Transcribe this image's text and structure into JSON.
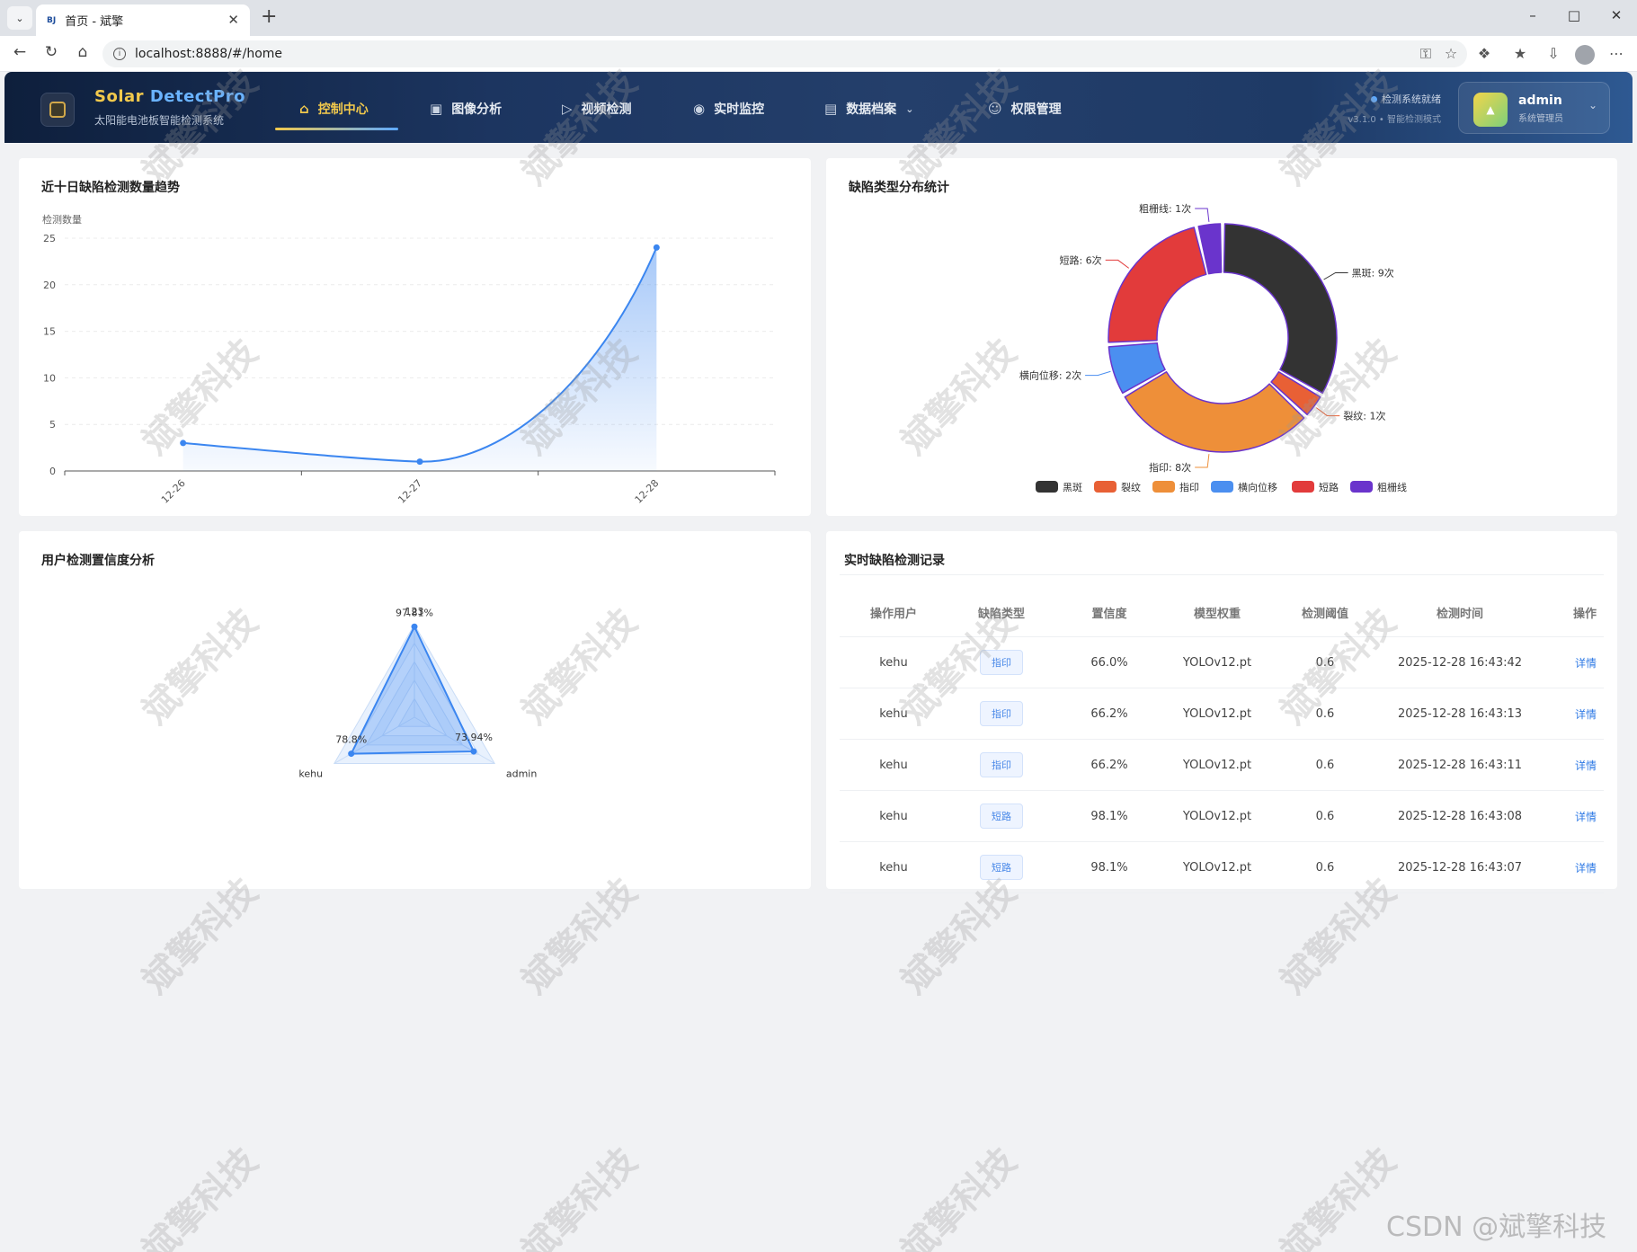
{
  "browser": {
    "tab_title": "首页 - 斌擎",
    "tab_favicon": "BJ",
    "url": "localhost:8888/#/home"
  },
  "header": {
    "brand_a": "Solar",
    "brand_b": "DetectPro",
    "subtitle": "太阳能电池板智能检测系统",
    "nav": [
      {
        "label": "控制中心",
        "icon": "home-icon",
        "active": true
      },
      {
        "label": "图像分析",
        "icon": "image-icon",
        "active": false
      },
      {
        "label": "视频检测",
        "icon": "play-circle-icon",
        "active": false
      },
      {
        "label": "实时监控",
        "icon": "camera-icon",
        "active": false
      },
      {
        "label": "数据档案",
        "icon": "document-icon",
        "active": false,
        "has_dropdown": true
      },
      {
        "label": "权限管理",
        "icon": "user-icon",
        "active": false
      }
    ],
    "status": "检测系统就绪",
    "version": "v3.1.0 • 智能检测模式",
    "user_name": "admin",
    "user_role": "系统管理员",
    "accent": "#f2c94c"
  },
  "trend": {
    "title": "近十日缺陷检测数量趋势",
    "chart_data": {
      "type": "line",
      "ylabel": "检测数量",
      "xlabel": "",
      "categories": [
        "12-26",
        "12-27",
        "12-28"
      ],
      "values": [
        3,
        1,
        24
      ],
      "ylim": [
        0,
        25
      ],
      "yticks": [
        0,
        5,
        10,
        15,
        20,
        25
      ],
      "area": true,
      "smooth": true,
      "grid": true,
      "color": "#3b86f0"
    }
  },
  "pie": {
    "title": "缺陷类型分布统计",
    "chart_data": {
      "type": "pie",
      "donut": true,
      "legend_position": "bottom",
      "slices": [
        {
          "name": "黑斑",
          "value": 9,
          "label": "黑斑: 9次",
          "color": "#333333"
        },
        {
          "name": "裂纹",
          "value": 1,
          "label": "裂纹: 1次",
          "color": "#e86035"
        },
        {
          "name": "指印",
          "value": 8,
          "label": "指印: 8次",
          "color": "#ee8f39"
        },
        {
          "name": "横向位移",
          "value": 2,
          "label": "横向位移: 2次",
          "color": "#4b8ff0"
        },
        {
          "name": "短路",
          "value": 6,
          "label": "短路: 6次",
          "color": "#e23b3b"
        },
        {
          "name": "粗栅线",
          "value": 1,
          "label": "粗栅线: 1次",
          "color": "#6a34cc"
        }
      ]
    }
  },
  "radar": {
    "title": "用户检测置信度分析",
    "chart_data": {
      "type": "radar",
      "indicators": [
        "123",
        "admin",
        "kehu"
      ],
      "values": [
        97.81,
        73.94,
        78.8
      ],
      "value_labels": [
        "97.81%",
        "73.94%",
        "78.8%"
      ],
      "max": 100,
      "color": "#3b86f0"
    }
  },
  "records": {
    "title": "实时缺陷检测记录",
    "columns": [
      "操作用户",
      "缺陷类型",
      "置信度",
      "模型权重",
      "检测阈值",
      "检测时间",
      "操作"
    ],
    "rows": [
      {
        "user": "kehu",
        "type": "指印",
        "conf": "66.0%",
        "model": "YOLOv12.pt",
        "thr": "0.6",
        "time": "2025-12-28 16:43:42",
        "action": "详情"
      },
      {
        "user": "kehu",
        "type": "指印",
        "conf": "66.2%",
        "model": "YOLOv12.pt",
        "thr": "0.6",
        "time": "2025-12-28 16:43:13",
        "action": "详情"
      },
      {
        "user": "kehu",
        "type": "指印",
        "conf": "66.2%",
        "model": "YOLOv12.pt",
        "thr": "0.6",
        "time": "2025-12-28 16:43:11",
        "action": "详情"
      },
      {
        "user": "kehu",
        "type": "短路",
        "conf": "98.1%",
        "model": "YOLOv12.pt",
        "thr": "0.6",
        "time": "2025-12-28 16:43:08",
        "action": "详情"
      },
      {
        "user": "kehu",
        "type": "短路",
        "conf": "98.1%",
        "model": "YOLOv12.pt",
        "thr": "0.6",
        "time": "2025-12-28 16:43:07",
        "action": "详情"
      }
    ]
  },
  "watermark": {
    "text": "斌擎科技",
    "csdn": "CSDN @斌擎科技"
  }
}
